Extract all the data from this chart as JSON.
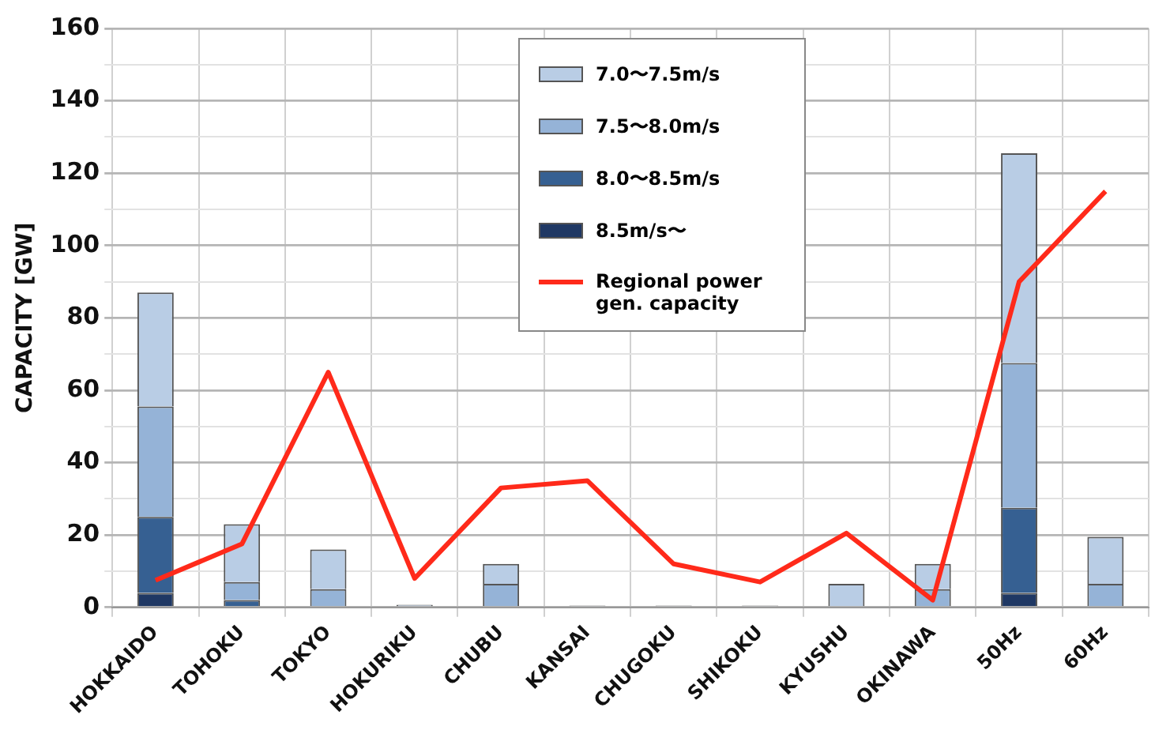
{
  "chart_data": {
    "type": "bar",
    "stacked": true,
    "ylabel": "CAPACITY [GW]",
    "categories": [
      "HOKKAIDO",
      "TOHOKU",
      "TOKYO",
      "HOKURIKU",
      "CHUBU",
      "KANSAI",
      "CHUGOKU",
      "SHIKOKU",
      "KYUSHU",
      "OKINAWA",
      "50Hz",
      "60Hz"
    ],
    "series": [
      {
        "name": "8.5m/s〜",
        "color": "#1f3864",
        "values": [
          4,
          0,
          0,
          0,
          0,
          0,
          0,
          0,
          0,
          0,
          4,
          0
        ]
      },
      {
        "name": "8.0〜8.5m/s",
        "color": "#366092",
        "values": [
          21,
          2,
          0,
          0,
          0,
          0,
          0,
          0,
          0,
          0,
          23.5,
          0
        ]
      },
      {
        "name": "7.5〜8.0m/s",
        "color": "#95b3d7",
        "values": [
          30.5,
          5,
          5,
          0,
          6.5,
          0,
          0,
          0,
          0,
          5,
          40,
          6.5
        ]
      },
      {
        "name": "7.0〜7.5m/s",
        "color": "#b9cde5",
        "values": [
          31.5,
          16,
          11,
          0.7,
          5.5,
          0.5,
          0.5,
          0.5,
          6.5,
          7,
          58,
          13
        ]
      },
      {
        "name": "Regional power gen. capacity",
        "type": "line",
        "color": "#ff2a1a",
        "values": [
          7.5,
          17.5,
          65,
          8,
          33,
          35,
          12,
          7,
          20.5,
          2,
          90,
          115
        ]
      }
    ],
    "ylim": [
      0,
      160
    ],
    "yticks": [
      0,
      {
        "value": 10,
        "label": null
      },
      20,
      {
        "value": 30,
        "label": null
      },
      40,
      {
        "value": 50,
        "label": null
      },
      60,
      {
        "value": 70,
        "label": null
      },
      80,
      {
        "value": 90,
        "label": null
      },
      100,
      {
        "value": 110,
        "label": null
      },
      120,
      {
        "value": 130,
        "label": null
      },
      140,
      {
        "value": 150,
        "label": null
      },
      160
    ],
    "grid": true,
    "legend": "top",
    "marker": "none",
    "line_style": "solid"
  }
}
